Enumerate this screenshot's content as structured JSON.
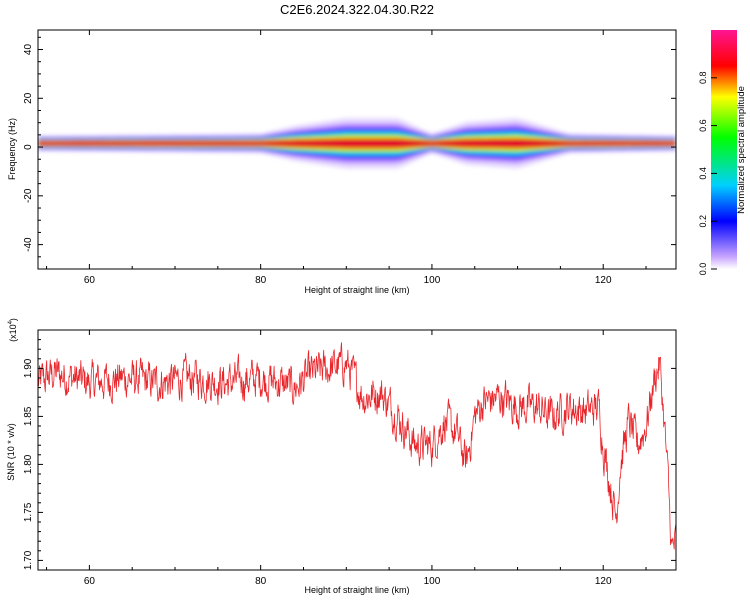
{
  "figure_title": "C2E6.2024.322.04.30.R22",
  "chart_data": [
    {
      "type": "heatmap",
      "xlabel": "Height of straight line (km)",
      "ylabel": "Frequency (Hz)",
      "xlim": [
        54,
        128.5
      ],
      "ylim": [
        -50,
        48
      ],
      "xticks": [
        "60",
        "80",
        "100",
        "120"
      ],
      "yticks": [
        "40",
        "20",
        "0",
        "-20",
        "-40"
      ],
      "colorbar": {
        "label": "Normalized spectral amplitude",
        "range": [
          0,
          1
        ],
        "ticks": [
          "0.0",
          "0.2",
          "0.4",
          "0.6",
          "0.8"
        ]
      },
      "ridge": {
        "frequency_hz": 1.5,
        "spread_profile": [
          {
            "x": 54,
            "spread_hz": 1.5
          },
          {
            "x": 80,
            "spread_hz": 2
          },
          {
            "x": 84,
            "spread_hz": 4
          },
          {
            "x": 90,
            "spread_hz": 6
          },
          {
            "x": 96,
            "spread_hz": 6
          },
          {
            "x": 100,
            "spread_hz": 2
          },
          {
            "x": 104,
            "spread_hz": 5
          },
          {
            "x": 110,
            "spread_hz": 6
          },
          {
            "x": 116,
            "spread_hz": 2
          },
          {
            "x": 128.5,
            "spread_hz": 1.5
          }
        ]
      }
    },
    {
      "type": "line",
      "xlabel": "Height of straight line (km)",
      "ylabel": "SNR (10 * v/v)",
      "y_multiplier": "(x10^4)",
      "xlim": [
        54,
        128.5
      ],
      "ylim": [
        1.69,
        1.94
      ],
      "xticks": [
        "60",
        "80",
        "100",
        "120"
      ],
      "yticks": [
        "1.90",
        "1.85",
        "1.80",
        "1.75",
        "1.70"
      ],
      "line_color": "#e8262b",
      "trend": [
        {
          "x": 54,
          "y": 1.885
        },
        {
          "x": 56,
          "y": 1.895
        },
        {
          "x": 60,
          "y": 1.885
        },
        {
          "x": 64,
          "y": 1.89
        },
        {
          "x": 68,
          "y": 1.885
        },
        {
          "x": 72,
          "y": 1.89
        },
        {
          "x": 76,
          "y": 1.885
        },
        {
          "x": 80,
          "y": 1.89
        },
        {
          "x": 84,
          "y": 1.88
        },
        {
          "x": 86,
          "y": 1.895
        },
        {
          "x": 88,
          "y": 1.9
        },
        {
          "x": 90,
          "y": 1.905
        },
        {
          "x": 92,
          "y": 1.87
        },
        {
          "x": 94,
          "y": 1.875
        },
        {
          "x": 96,
          "y": 1.85
        },
        {
          "x": 98,
          "y": 1.82
        },
        {
          "x": 100,
          "y": 1.82
        },
        {
          "x": 101.5,
          "y": 1.845
        },
        {
          "x": 103,
          "y": 1.83
        },
        {
          "x": 104,
          "y": 1.8
        },
        {
          "x": 105,
          "y": 1.85
        },
        {
          "x": 106,
          "y": 1.865
        },
        {
          "x": 108,
          "y": 1.87
        },
        {
          "x": 110,
          "y": 1.86
        },
        {
          "x": 112,
          "y": 1.86
        },
        {
          "x": 114,
          "y": 1.85
        },
        {
          "x": 116,
          "y": 1.86
        },
        {
          "x": 118,
          "y": 1.855
        },
        {
          "x": 119.5,
          "y": 1.86
        },
        {
          "x": 120,
          "y": 1.82
        },
        {
          "x": 121,
          "y": 1.77
        },
        {
          "x": 121.5,
          "y": 1.745
        },
        {
          "x": 122,
          "y": 1.8
        },
        {
          "x": 123,
          "y": 1.845
        },
        {
          "x": 124,
          "y": 1.82
        },
        {
          "x": 125,
          "y": 1.84
        },
        {
          "x": 126,
          "y": 1.89
        },
        {
          "x": 126.6,
          "y": 1.905
        },
        {
          "x": 127,
          "y": 1.86
        },
        {
          "x": 127.6,
          "y": 1.78
        },
        {
          "x": 128,
          "y": 1.71
        },
        {
          "x": 128.5,
          "y": 1.72
        }
      ]
    }
  ]
}
